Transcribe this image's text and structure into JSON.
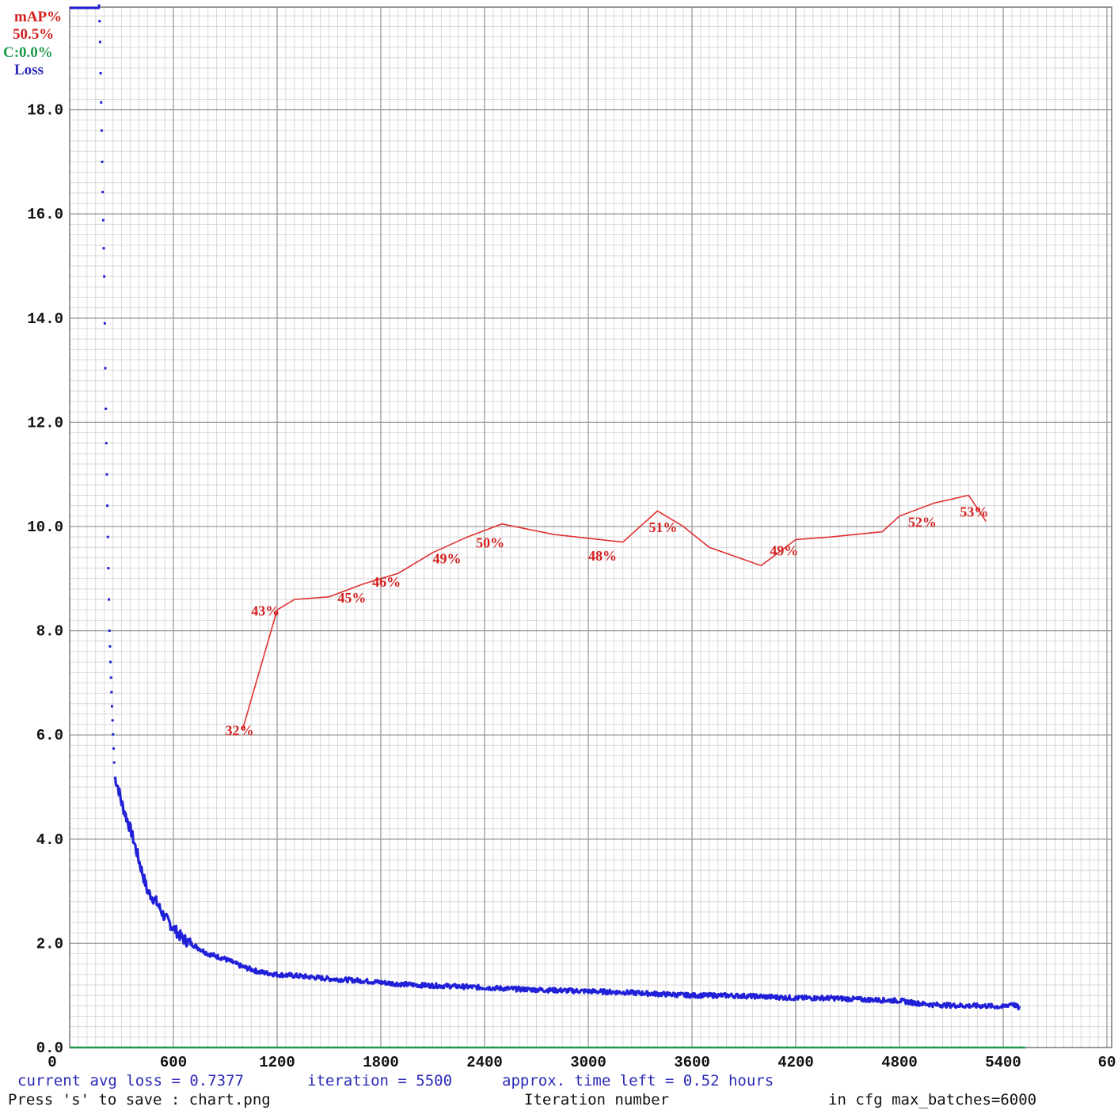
{
  "chart_data": {
    "type": "line",
    "title": "",
    "xlabel": "Iteration number",
    "ylabel": "",
    "xlim": [
      0,
      6000
    ],
    "ylim": [
      0,
      20
    ],
    "x_ticks": [
      "0",
      "600",
      "1200",
      "1800",
      "2400",
      "3000",
      "3600",
      "4200",
      "4800",
      "5400",
      "60"
    ],
    "y_ticks": [
      "0.0",
      "2.0",
      "4.0",
      "6.0",
      "8.0",
      "10.0",
      "12.0",
      "14.0",
      "16.0",
      "18.0"
    ],
    "grid": true,
    "legend": [
      {
        "label": "mAP%",
        "color": "#d42020"
      },
      {
        "label": "50.5%",
        "color": "#d42020"
      },
      {
        "label": "C:0.0%",
        "color": "#1e9a4a"
      },
      {
        "label": "Loss",
        "color": "#2a2ab8"
      }
    ],
    "loss": {
      "name": "Loss",
      "color": "#2020d8",
      "x": [
        170,
        175,
        180,
        185,
        190,
        195,
        200,
        205,
        210,
        215,
        220,
        225,
        230,
        240,
        250,
        260,
        280,
        300,
        330,
        360,
        400,
        450,
        500,
        550,
        600,
        650,
        700,
        800,
        900,
        1000,
        1100,
        1200,
        1300,
        1400,
        1500,
        1600,
        1700,
        1800,
        1900,
        2000,
        2200,
        2400,
        2600,
        2800,
        3000,
        3200,
        3400,
        3600,
        3800,
        4000,
        4200,
        4400,
        4600,
        4800,
        4900,
        5000,
        5200,
        5300,
        5400,
        5450,
        5500
      ],
      "y": [
        20.0,
        19.5,
        18.5,
        17.6,
        16.6,
        15.7,
        14.8,
        13.3,
        12.0,
        11.0,
        10.0,
        9.0,
        8.0,
        7.0,
        6.1,
        5.2,
        5.0,
        4.7,
        4.4,
        4.1,
        3.6,
        3.0,
        2.8,
        2.5,
        2.3,
        2.1,
        2.0,
        1.8,
        1.7,
        1.55,
        1.45,
        1.4,
        1.38,
        1.35,
        1.32,
        1.3,
        1.28,
        1.25,
        1.22,
        1.2,
        1.18,
        1.15,
        1.12,
        1.1,
        1.08,
        1.06,
        1.03,
        1.0,
        1.0,
        0.98,
        0.95,
        0.95,
        0.92,
        0.9,
        0.85,
        0.82,
        0.8,
        0.8,
        0.78,
        0.85,
        0.74
      ]
    },
    "map": {
      "name": "mAP%",
      "color": "#e23030",
      "x": [
        1000,
        1200,
        1300,
        1500,
        1700,
        1900,
        2100,
        2300,
        2500,
        2800,
        3200,
        3400,
        3550,
        3700,
        4000,
        4200,
        4400,
        4700,
        4800,
        5000,
        5200,
        5300
      ],
      "y": [
        6.1,
        8.4,
        8.6,
        8.65,
        8.9,
        9.1,
        9.5,
        9.8,
        10.05,
        9.85,
        9.7,
        10.3,
        10.0,
        9.6,
        9.25,
        9.75,
        9.8,
        9.9,
        10.2,
        10.45,
        10.6,
        10.1
      ],
      "labels": [
        {
          "text": "32%",
          "x": 900,
          "y": 6.1
        },
        {
          "text": "43%",
          "x": 1050,
          "y": 8.4
        },
        {
          "text": "45%",
          "x": 1550,
          "y": 8.65
        },
        {
          "text": "46%",
          "x": 1750,
          "y": 8.95
        },
        {
          "text": "49%",
          "x": 2100,
          "y": 9.4
        },
        {
          "text": "50%",
          "x": 2350,
          "y": 9.7
        },
        {
          "text": "48%",
          "x": 3000,
          "y": 9.45
        },
        {
          "text": "51%",
          "x": 3350,
          "y": 10.0
        },
        {
          "text": "49%",
          "x": 4050,
          "y": 9.55
        },
        {
          "text": "52%",
          "x": 4850,
          "y": 10.1
        },
        {
          "text": "53%",
          "x": 5150,
          "y": 10.3
        }
      ]
    },
    "map_series_x_axis_green": {
      "color": "#1e9a4a"
    }
  },
  "footer": {
    "avg_loss": "current avg loss = 0.7377",
    "iteration": "iteration = 5500",
    "time_left": "approx. time left = 0.52 hours",
    "save_hint": "Press 's' to save : chart.png",
    "xlabel": "Iteration number",
    "max_batches": "in cfg max_batches=6000"
  }
}
